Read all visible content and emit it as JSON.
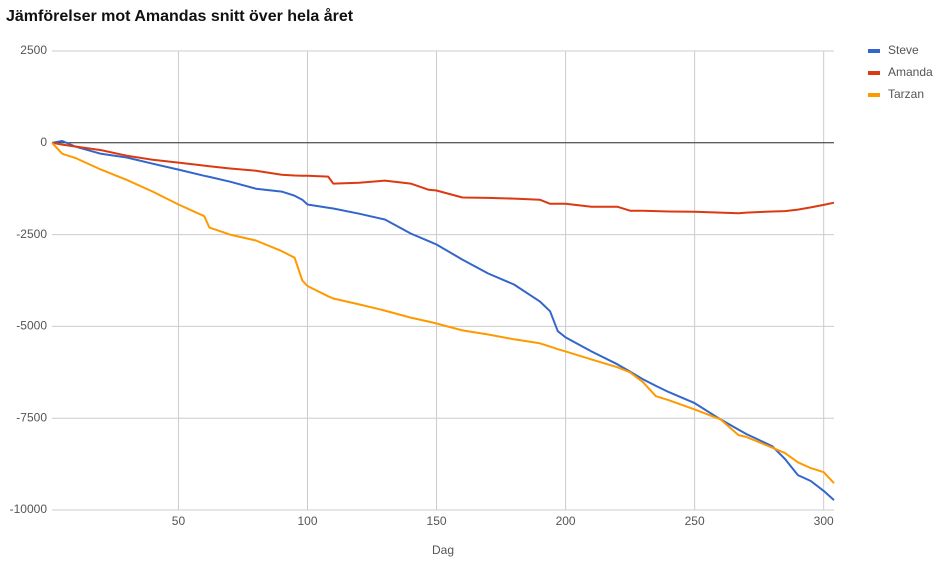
{
  "chart_data": {
    "type": "line",
    "title": "Jämförelser mot Amandas snitt över hela året",
    "x_label": "Dag",
    "x": [
      1,
      5,
      10,
      20,
      30,
      40,
      50,
      60,
      62,
      70,
      80,
      90,
      95,
      98,
      100,
      108,
      110,
      120,
      130,
      140,
      147,
      150,
      160,
      170,
      180,
      190,
      194,
      197,
      200,
      210,
      220,
      225,
      230,
      235,
      240,
      250,
      260,
      267,
      270,
      280,
      285,
      290,
      295,
      300,
      304
    ],
    "series": [
      {
        "name": "Steve",
        "color": "#3366cc",
        "values": [
          0,
          50,
          -100,
          -300,
          -400,
          -570,
          -730,
          -900,
          -930,
          -1060,
          -1250,
          -1330,
          -1440,
          -1550,
          -1680,
          -1770,
          -1790,
          -1930,
          -2090,
          -2470,
          -2680,
          -2770,
          -3180,
          -3560,
          -3860,
          -4320,
          -4590,
          -5130,
          -5300,
          -5680,
          -6030,
          -6230,
          -6440,
          -6620,
          -6790,
          -7090,
          -7530,
          -7810,
          -7930,
          -8260,
          -8610,
          -9050,
          -9210,
          -9480,
          -9730
        ]
      },
      {
        "name": "Amanda",
        "color": "#dc3912",
        "values": [
          0,
          -50,
          -100,
          -200,
          -350,
          -460,
          -540,
          -620,
          -640,
          -700,
          -760,
          -870,
          -890,
          -895,
          -900,
          -920,
          -1110,
          -1090,
          -1030,
          -1110,
          -1280,
          -1300,
          -1490,
          -1500,
          -1520,
          -1550,
          -1660,
          -1660,
          -1660,
          -1740,
          -1740,
          -1850,
          -1850,
          -1860,
          -1870,
          -1880,
          -1900,
          -1920,
          -1900,
          -1870,
          -1860,
          -1820,
          -1760,
          -1690,
          -1630
        ]
      },
      {
        "name": "Tarzan",
        "color": "#ff9900",
        "values": [
          0,
          -300,
          -410,
          -730,
          -1010,
          -1330,
          -1680,
          -2000,
          -2310,
          -2500,
          -2660,
          -2950,
          -3130,
          -3750,
          -3900,
          -4180,
          -4240,
          -4400,
          -4570,
          -4760,
          -4870,
          -4920,
          -5110,
          -5220,
          -5350,
          -5460,
          -5550,
          -5620,
          -5680,
          -5900,
          -6110,
          -6250,
          -6520,
          -6900,
          -7010,
          -7260,
          -7530,
          -7960,
          -8010,
          -8300,
          -8450,
          -8700,
          -8860,
          -8970,
          -9270
        ]
      }
    ],
    "xlim": [
      1,
      304
    ],
    "xticks": [
      50,
      100,
      150,
      200,
      250,
      300
    ],
    "ylim": [
      -10000,
      2500
    ],
    "yticks": [
      2500,
      0,
      -2500,
      -5000,
      -7500,
      -10000
    ],
    "grid": true,
    "legend": "right"
  }
}
